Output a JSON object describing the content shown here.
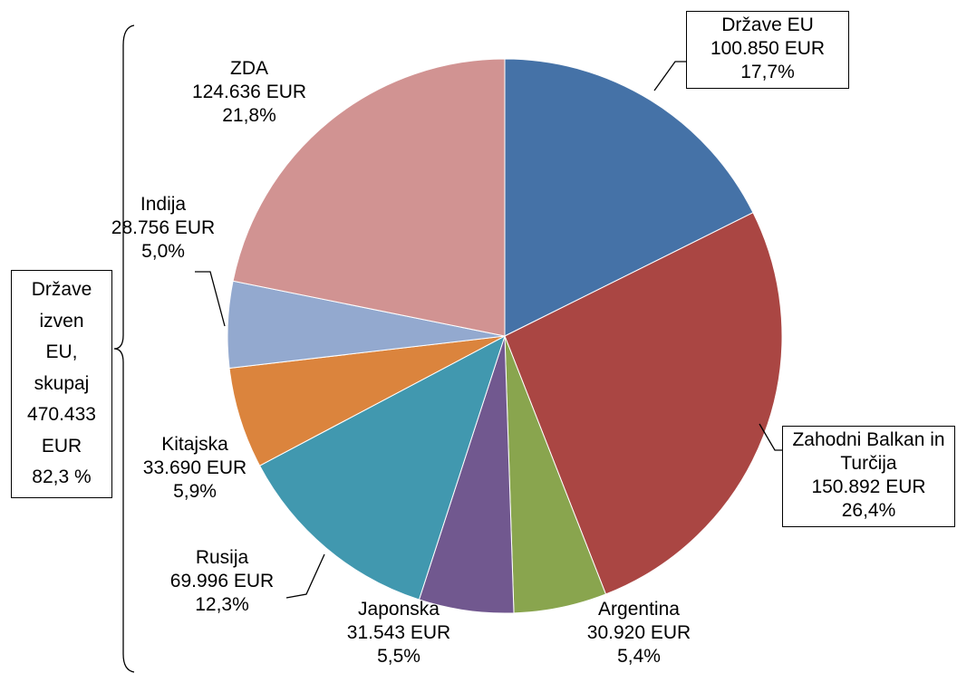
{
  "chart_data": {
    "type": "pie",
    "categories": [
      "Države EU",
      "Zahodni Balkan in Turčija",
      "Argentina",
      "Japonska",
      "Rusija",
      "Kitajska",
      "Indija",
      "ZDA"
    ],
    "values": [
      100850,
      150892,
      30920,
      31543,
      69996,
      33690,
      28756,
      124636
    ],
    "value_labels": [
      "100.850 EUR",
      "150.892 EUR",
      "30.920 EUR",
      "31.543 EUR",
      "69.996 EUR",
      "33.690 EUR",
      "28.756 EUR",
      "124.636 EUR"
    ],
    "percent_labels": [
      "17,7%",
      "26,4%",
      "5,4%",
      "5,5%",
      "12,3%",
      "5,9%",
      "5,0%",
      "21,8%"
    ],
    "colors": [
      "#4572a7",
      "#aa4643",
      "#89a54e",
      "#71588f",
      "#4198af",
      "#db843d",
      "#93a9cf",
      "#d19392"
    ],
    "annotation": [
      "Države",
      "izven",
      "EU,",
      "skupaj",
      "470.433",
      "EUR",
      "82,3 %"
    ]
  }
}
